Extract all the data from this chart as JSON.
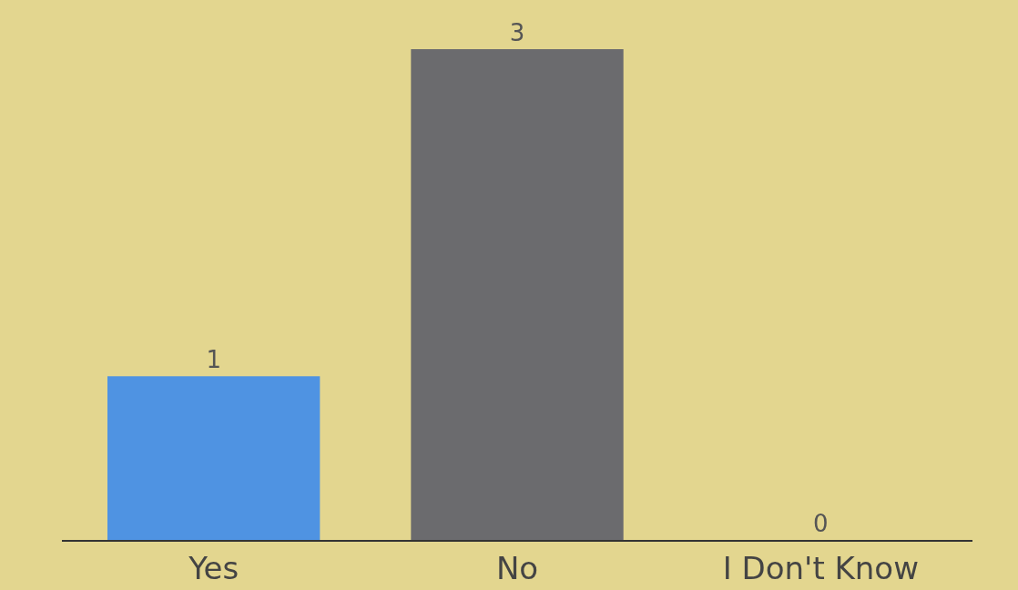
{
  "chart_data": {
    "type": "bar",
    "categories": [
      "Yes",
      "No",
      "I Don't Know"
    ],
    "values": [
      1,
      3,
      0
    ],
    "colors": [
      "#4f93e2",
      "#6b6b6e",
      "#6b6b6e"
    ],
    "data_labels": true
  }
}
